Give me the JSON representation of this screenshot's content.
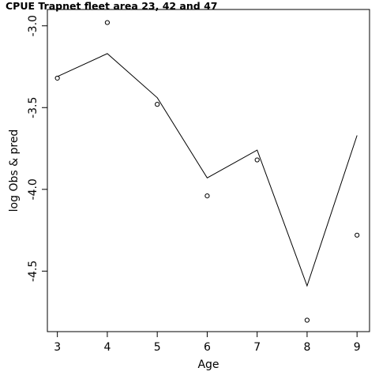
{
  "chart_data": {
    "type": "line",
    "title": "CPUE Trapnet fleet area 23, 42 and 47",
    "xlabel": "Age",
    "ylabel": "log Obs & pred",
    "x": [
      3,
      4,
      5,
      6,
      7,
      8,
      9
    ],
    "xlim": [
      2.8,
      9.25
    ],
    "ylim": [
      -4.87,
      -2.9
    ],
    "x_ticks": [
      3,
      4,
      5,
      6,
      7,
      8,
      9
    ],
    "y_ticks": [
      -3.0,
      -3.5,
      -4.0,
      -4.5
    ],
    "x_tick_labels": [
      "3",
      "4",
      "5",
      "6",
      "7",
      "8",
      "9"
    ],
    "y_tick_labels": [
      "-3.0",
      "-3.5",
      "-4.0",
      "-4.5"
    ],
    "grid": false,
    "series": [
      {
        "role": "observed",
        "style": "points",
        "values": [
          -3.32,
          -2.98,
          -3.48,
          -4.04,
          -3.82,
          -4.8,
          -4.28
        ]
      },
      {
        "role": "predicted",
        "style": "line",
        "values": [
          -3.31,
          -3.17,
          -3.44,
          -3.93,
          -3.76,
          -4.59,
          -3.67
        ]
      }
    ]
  }
}
